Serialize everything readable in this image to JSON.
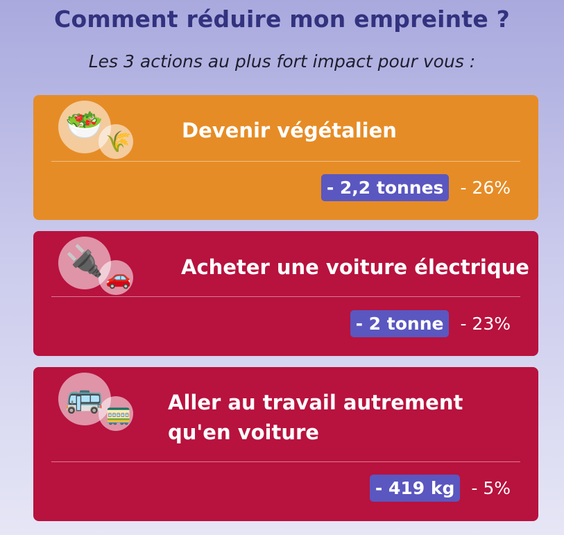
{
  "header": {
    "title": "Comment réduire mon empreinte ?",
    "subtitle": "Les 3 actions au plus fort impact pour vous :"
  },
  "actions": [
    {
      "title": "Devenir végétalien",
      "amount": "- 2,2 tonnes",
      "percent": "- 26%",
      "color": "#e68c26",
      "icons": {
        "main": "🥗",
        "sub": "🌾",
        "main_name": "salad-icon",
        "sub_name": "rice-plant-icon"
      }
    },
    {
      "title": "Acheter une voiture électrique",
      "amount": "- 2 tonne",
      "percent": "- 23%",
      "color": "#b8123e",
      "icons": {
        "main": "🔌",
        "sub": "🚗",
        "main_name": "electric-plug-icon",
        "sub_name": "car-icon"
      }
    },
    {
      "title": "Aller au travail autrement qu'en voiture",
      "amount": "- 419 kg",
      "percent": "- 5%",
      "color": "#b8123e",
      "icons": {
        "main": "🚌",
        "sub": "🚃",
        "main_name": "bus-icon",
        "sub_name": "train-icon"
      }
    }
  ],
  "colors": {
    "title": "#32327f",
    "badge": "#5a57c0"
  }
}
